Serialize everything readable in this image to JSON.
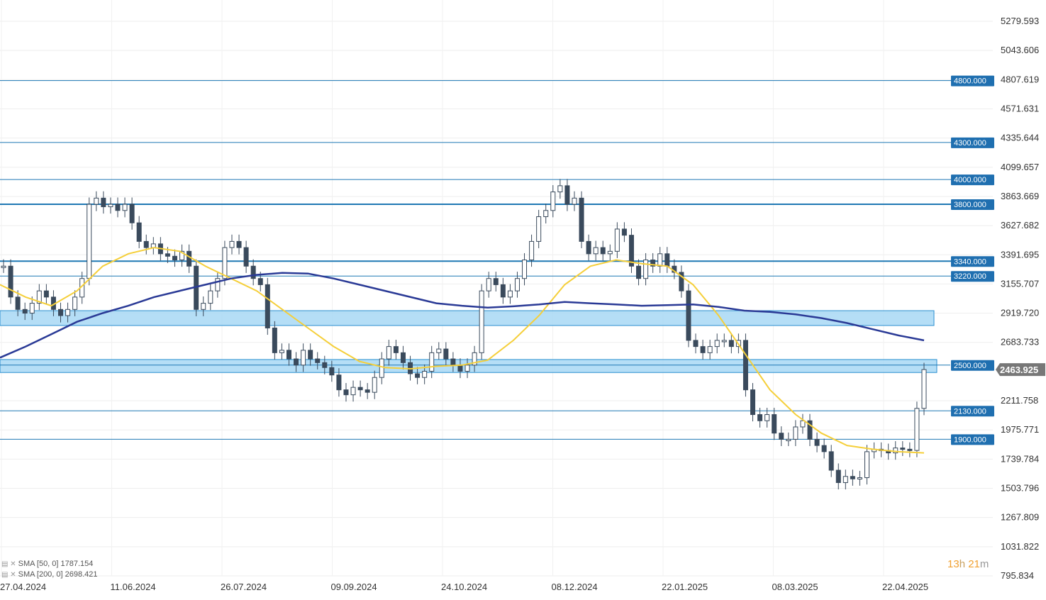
{
  "chart_data": {
    "type": "candlestick",
    "y_ticks": [
      "5279.593",
      "5043.606",
      "4807.619",
      "4571.631",
      "4335.644",
      "4099.657",
      "3863.669",
      "3627.682",
      "3391.695",
      "3155.707",
      "2919.720",
      "2683.733",
      "2211.758",
      "1975.771",
      "1739.784",
      "1503.796",
      "1267.809",
      "1031.822",
      "795.834"
    ],
    "ylim": [
      795.834,
      5279.593
    ],
    "x_ticks": [
      "27.04.2024",
      "11.06.2024",
      "26.07.2024",
      "09.09.2024",
      "24.10.2024",
      "08.12.2024",
      "22.01.2025",
      "08.03.2025",
      "22.04.2025"
    ],
    "last_price": "2463.925",
    "horizontal_lines": [
      {
        "value": 4800,
        "label": "4800.000"
      },
      {
        "value": 4300,
        "label": "4300.000"
      },
      {
        "value": 4000,
        "label": "4000.000"
      },
      {
        "value": 3800,
        "label": "3800.000"
      },
      {
        "value": 3340,
        "label": "3340.000"
      },
      {
        "value": 3220,
        "label": "3220.000"
      },
      {
        "value": 2130,
        "label": "2130.000"
      },
      {
        "value": 1900,
        "label": "1900.000"
      }
    ],
    "zones": [
      {
        "low": 2820,
        "high": 2940
      },
      {
        "low": 2440,
        "high": 2545,
        "label": "2500.000"
      }
    ],
    "closes": [
      3300,
      3050,
      2950,
      2920,
      3000,
      3100,
      3050,
      2950,
      2900,
      2950,
      3050,
      3200,
      3800,
      3850,
      3780,
      3800,
      3750,
      3800,
      3650,
      3500,
      3450,
      3480,
      3400,
      3380,
      3350,
      3420,
      3300,
      2950,
      3000,
      3100,
      3200,
      3450,
      3500,
      3450,
      3300,
      3200,
      3150,
      2800,
      2600,
      2620,
      2550,
      2500,
      2620,
      2550,
      2520,
      2480,
      2420,
      2300,
      2260,
      2320,
      2300,
      2280,
      2400,
      2550,
      2650,
      2600,
      2520,
      2430,
      2400,
      2450,
      2600,
      2630,
      2550,
      2500,
      2450,
      2500,
      2600,
      3100,
      3200,
      3150,
      3050,
      3100,
      3200,
      3350,
      3500,
      3700,
      3750,
      3900,
      3950,
      3800,
      3850,
      3500,
      3400,
      3450,
      3400,
      3420,
      3600,
      3550,
      3300,
      3200,
      3350,
      3300,
      3400,
      3300,
      3250,
      3100,
      2700,
      2650,
      2600,
      2650,
      2700,
      2700,
      2650,
      2700,
      2300,
      2100,
      2050,
      2100,
      1950,
      1900,
      1900,
      2000,
      2050,
      1900,
      1850,
      1800,
      1650,
      1550,
      1600,
      1580,
      1590,
      1800,
      1820,
      1810,
      1790,
      1830,
      1820,
      1810,
      2150,
      2463.925
    ],
    "sma50": [
      3150,
      3050,
      2980,
      3100,
      3300,
      3400,
      3450,
      3420,
      3300,
      3200,
      3100,
      2950,
      2800,
      2650,
      2530,
      2480,
      2470,
      2490,
      2500,
      2540,
      2700,
      2900,
      3150,
      3300,
      3350,
      3320,
      3300,
      3150,
      2900,
      2600,
      2300,
      2100,
      1950,
      1850,
      1820,
      1800,
      1790
    ],
    "sma200": [
      2560,
      2650,
      2750,
      2850,
      2920,
      2980,
      3050,
      3100,
      3150,
      3200,
      3230,
      3245,
      3240,
      3200,
      3150,
      3100,
      3050,
      3000,
      2980,
      2965,
      2975,
      2990,
      3010,
      3000,
      2990,
      2980,
      2985,
      2990,
      2970,
      2940,
      2930,
      2910,
      2880,
      2840,
      2790,
      2740,
      2700
    ]
  },
  "indicators": [
    {
      "name": "SMA [50, 0]",
      "value": "1787.154",
      "color": "#f5cf3a"
    },
    {
      "name": "SMA [200, 0]",
      "value": "2698.421",
      "color": "#2a3a96"
    }
  ],
  "timer": {
    "hours": "13",
    "h": "h",
    "minutes": "21",
    "m": "m"
  },
  "colors": {
    "candle": "#3a4a5c",
    "line": "#1f78b4",
    "zone_fill": "#a8d8f5",
    "zone_stroke": "#2a8fd0",
    "badge": "#1f6fb0",
    "price_badge": "#777777"
  }
}
